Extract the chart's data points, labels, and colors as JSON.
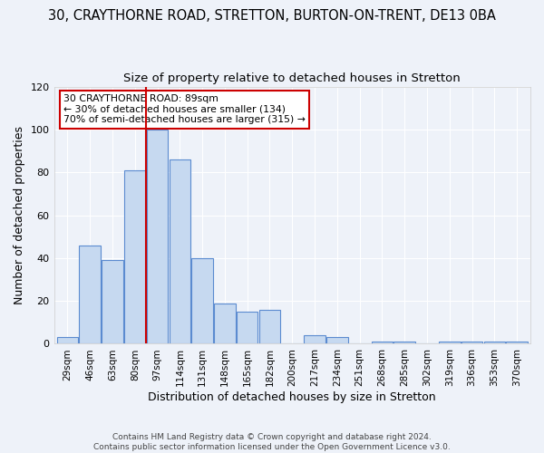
{
  "title": "30, CRAYTHORNE ROAD, STRETTON, BURTON-ON-TRENT, DE13 0BA",
  "subtitle": "Size of property relative to detached houses in Stretton",
  "xlabel": "Distribution of detached houses by size in Stretton",
  "ylabel": "Number of detached properties",
  "bar_labels": [
    "29sqm",
    "46sqm",
    "63sqm",
    "80sqm",
    "97sqm",
    "114sqm",
    "131sqm",
    "148sqm",
    "165sqm",
    "182sqm",
    "200sqm",
    "217sqm",
    "234sqm",
    "251sqm",
    "268sqm",
    "285sqm",
    "302sqm",
    "319sqm",
    "336sqm",
    "353sqm",
    "370sqm"
  ],
  "bar_values": [
    3,
    46,
    39,
    81,
    100,
    86,
    40,
    19,
    15,
    16,
    0,
    4,
    3,
    0,
    1,
    1,
    0,
    1,
    1,
    1,
    1
  ],
  "bar_color": "#c6d9f0",
  "bar_edge_color": "#5b8bd0",
  "vline_color": "#cc0000",
  "annotation_text": "30 CRAYTHORNE ROAD: 89sqm\n← 30% of detached houses are smaller (134)\n70% of semi-detached houses are larger (315) →",
  "annotation_box_color": "white",
  "annotation_box_edge": "#cc0000",
  "ylim": [
    0,
    120
  ],
  "yticks": [
    0,
    20,
    40,
    60,
    80,
    100,
    120
  ],
  "footer": "Contains HM Land Registry data © Crown copyright and database right 2024.\nContains public sector information licensed under the Open Government Licence v3.0.",
  "bg_color": "#eef2f9",
  "title_fontsize": 10.5,
  "subtitle_fontsize": 9.5,
  "grid_color": "#ffffff"
}
